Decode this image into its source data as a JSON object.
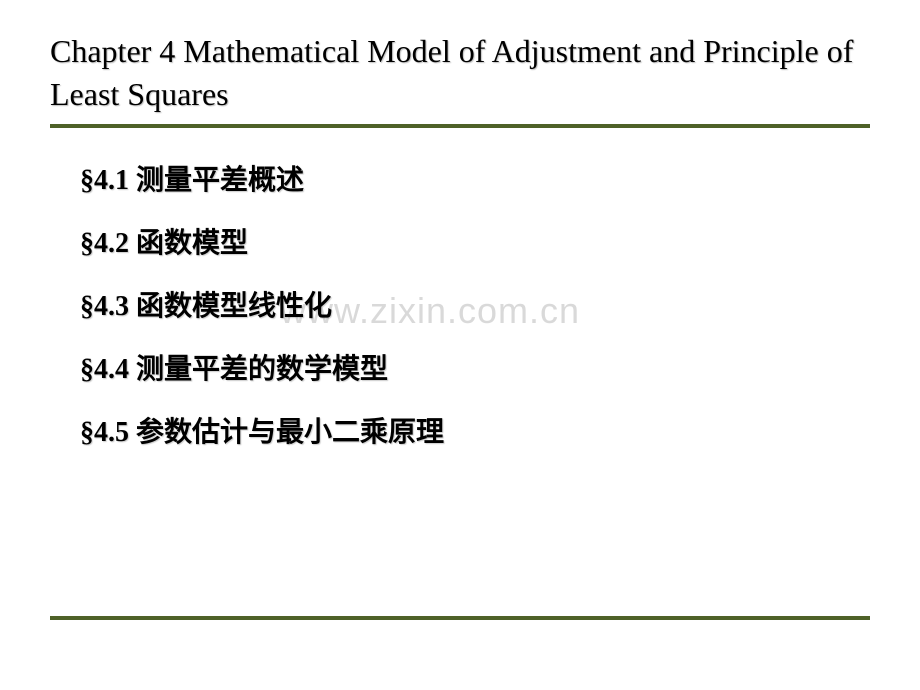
{
  "title": "Chapter 4 Mathematical Model of Adjustment and Principle of Least Squares",
  "sections": {
    "s1": "§4.1 测量平差概述",
    "s2": "§4.2 函数模型",
    "s3": "§4.3 函数模型线性化",
    "s4": "§4.4 测量平差的数学模型",
    "s5": "§4.5 参数估计与最小二乘原理"
  },
  "watermark": "www.zixin.com.cn",
  "colors": {
    "underline": "#4e6128",
    "text": "#000000",
    "watermark": "#d9d9d9",
    "background": "#ffffff"
  },
  "fonts": {
    "title_size": 32,
    "section_size": 28,
    "watermark_size": 36
  }
}
